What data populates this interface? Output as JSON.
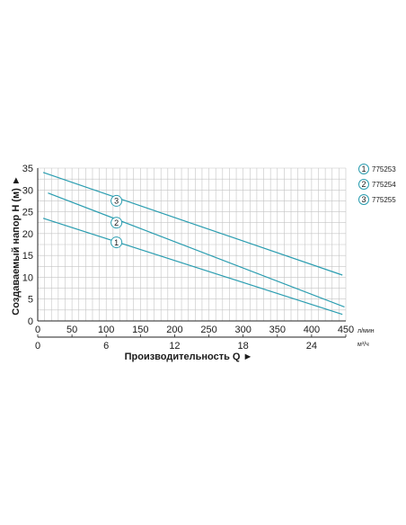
{
  "chart_data": {
    "type": "line",
    "xlabel": "Производительность Q ►",
    "ylabel": "Создаваемый напор H (м) ►",
    "x_unit": "л/мин",
    "x2_unit": "м³/ч",
    "x_ticks": [
      "0",
      "50",
      "100",
      "150",
      "200",
      "250",
      "300",
      "350",
      "400",
      "450"
    ],
    "x2_ticks": [
      "0",
      "6",
      "12",
      "18",
      "24"
    ],
    "y_ticks": [
      "0",
      "5",
      "10",
      "15",
      "20",
      "25",
      "30",
      "35"
    ],
    "xlim": [
      0,
      450
    ],
    "x2lim": [
      0,
      27
    ],
    "ylim": [
      0,
      35
    ],
    "grid": true,
    "legend_position": "right",
    "line_color": "#2a9db0",
    "series": [
      {
        "marker": "1",
        "name": "775253",
        "x": [
          8,
          445
        ],
        "y": [
          23.5,
          1.5
        ],
        "marker_x": 115,
        "marker_y": 18
      },
      {
        "marker": "2",
        "name": "775254",
        "x": [
          15,
          448
        ],
        "y": [
          29.3,
          3.2
        ],
        "marker_x": 115,
        "marker_y": 22.5
      },
      {
        "marker": "3",
        "name": "775255",
        "x": [
          8,
          445
        ],
        "y": [
          34,
          10.5
        ],
        "marker_x": 115,
        "marker_y": 27.5
      }
    ]
  }
}
